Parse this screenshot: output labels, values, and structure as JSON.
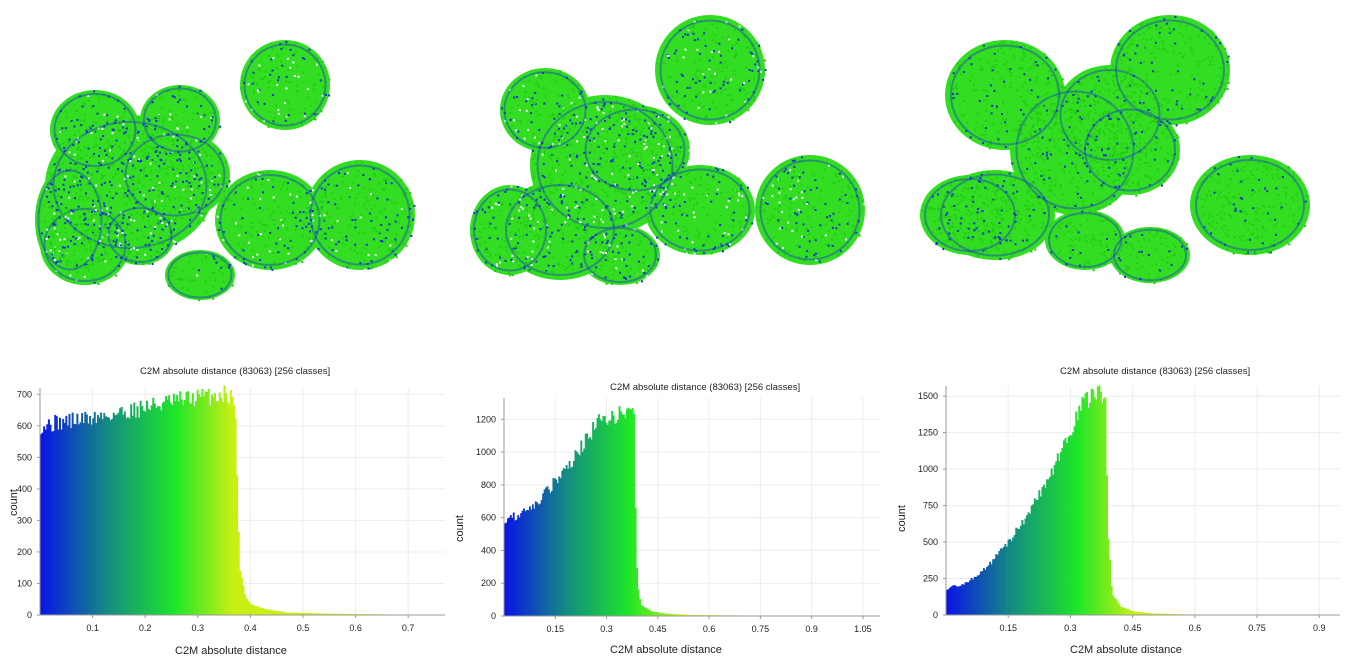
{
  "blobs": [
    {
      "name": "point-cloud-1"
    },
    {
      "name": "point-cloud-2"
    },
    {
      "name": "point-cloud-3"
    }
  ],
  "chart_data": [
    {
      "type": "bar",
      "title": "C2M absolute distance (83063) [256 classes]",
      "xlabel": "C2M absolute distance",
      "ylabel": "count",
      "xlim": [
        0,
        0.77
      ],
      "ylim": [
        0,
        720
      ],
      "xticks": [
        0.1,
        0.2,
        0.3,
        0.4,
        0.5,
        0.6,
        0.7
      ],
      "xtick_labels": [
        "0.1",
        "0.2",
        "0.3",
        "0.4",
        "0.5",
        "0.6",
        "0.7"
      ],
      "yticks": [
        0,
        100,
        200,
        300,
        400,
        500,
        600,
        700
      ],
      "ytick_labels": [
        "0",
        "100",
        "200",
        "300",
        "400",
        "500",
        "600",
        "700"
      ],
      "profile": [
        [
          0.0,
          600
        ],
        [
          0.05,
          615
        ],
        [
          0.1,
          625
        ],
        [
          0.15,
          640
        ],
        [
          0.2,
          660
        ],
        [
          0.25,
          675
        ],
        [
          0.3,
          690
        ],
        [
          0.35,
          700
        ],
        [
          0.37,
          690
        ],
        [
          0.375,
          400
        ],
        [
          0.38,
          150
        ],
        [
          0.39,
          60
        ],
        [
          0.4,
          35
        ],
        [
          0.43,
          18
        ],
        [
          0.47,
          8
        ],
        [
          0.55,
          4
        ],
        [
          0.65,
          2
        ],
        [
          0.77,
          0
        ]
      ]
    },
    {
      "type": "bar",
      "title": "C2M absolute distance (83063) [256 classes]",
      "xlabel": "C2M absolute distance",
      "ylabel": "count",
      "xlim": [
        0,
        1.1
      ],
      "ylim": [
        0,
        1330
      ],
      "xticks": [
        0.15,
        0.3,
        0.45,
        0.6,
        0.75,
        0.9,
        1.05
      ],
      "xtick_labels": [
        "0.15",
        "0.3",
        "0.45",
        "0.6",
        "0.75",
        "0.9",
        "1.05"
      ],
      "yticks": [
        0,
        200,
        400,
        600,
        800,
        1000,
        1200
      ],
      "ytick_labels": [
        "0",
        "200",
        "400",
        "600",
        "800",
        "1000",
        "1200"
      ],
      "profile": [
        [
          0.0,
          590
        ],
        [
          0.05,
          620
        ],
        [
          0.1,
          700
        ],
        [
          0.15,
          820
        ],
        [
          0.2,
          950
        ],
        [
          0.25,
          1100
        ],
        [
          0.28,
          1200
        ],
        [
          0.33,
          1230
        ],
        [
          0.38,
          1220
        ],
        [
          0.385,
          600
        ],
        [
          0.39,
          200
        ],
        [
          0.4,
          70
        ],
        [
          0.43,
          30
        ],
        [
          0.47,
          15
        ],
        [
          0.55,
          6
        ],
        [
          0.7,
          3
        ],
        [
          0.9,
          1
        ],
        [
          1.1,
          0
        ]
      ]
    },
    {
      "type": "bar",
      "title": "C2M absolute distance (83063) [256 classes]",
      "xlabel": "C2M absolute distance",
      "ylabel": "count",
      "xlim": [
        0,
        0.95
      ],
      "ylim": [
        0,
        1570
      ],
      "xticks": [
        0.15,
        0.3,
        0.45,
        0.6,
        0.75,
        0.9
      ],
      "xtick_labels": [
        "0.15",
        "0.3",
        "0.45",
        "0.6",
        "0.75",
        "0.9"
      ],
      "yticks": [
        0,
        250,
        500,
        750,
        1000,
        1250,
        1500
      ],
      "ytick_labels": [
        "0",
        "250",
        "500",
        "750",
        "1000",
        "1250",
        "1500"
      ],
      "profile": [
        [
          0.0,
          180
        ],
        [
          0.05,
          220
        ],
        [
          0.1,
          330
        ],
        [
          0.15,
          500
        ],
        [
          0.2,
          700
        ],
        [
          0.25,
          950
        ],
        [
          0.3,
          1250
        ],
        [
          0.33,
          1450
        ],
        [
          0.37,
          1520
        ],
        [
          0.385,
          1500
        ],
        [
          0.39,
          600
        ],
        [
          0.4,
          150
        ],
        [
          0.42,
          60
        ],
        [
          0.45,
          25
        ],
        [
          0.5,
          10
        ],
        [
          0.6,
          3
        ],
        [
          0.75,
          1
        ],
        [
          0.95,
          0
        ]
      ]
    }
  ]
}
